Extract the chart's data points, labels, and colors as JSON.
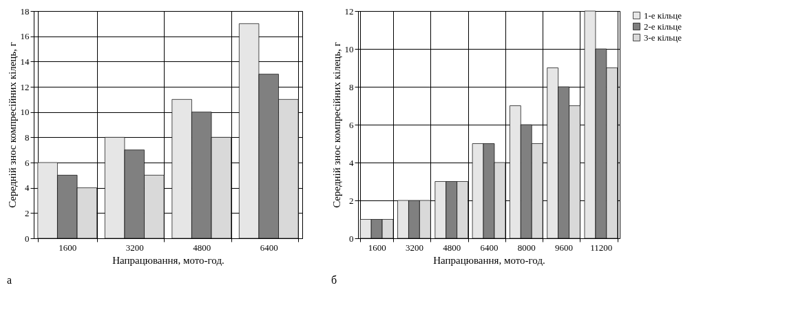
{
  "chart_data": [
    {
      "type": "bar",
      "categories": [
        "1600",
        "3200",
        "4800",
        "6400"
      ],
      "series": [
        {
          "color": "#e6e6e6",
          "values": [
            6,
            8,
            11,
            17
          ]
        },
        {
          "color": "#808080",
          "values": [
            5,
            7,
            10,
            13
          ]
        },
        {
          "color": "#d9d9d9",
          "values": [
            4,
            5,
            8,
            11
          ]
        }
      ],
      "ylim": [
        0,
        18
      ],
      "yticks": [
        0,
        2,
        4,
        6,
        8,
        10,
        12,
        14,
        16,
        18
      ],
      "xlabel": "Напрацювання, мото-год.",
      "ylabel": "Середній знос компресійних кілець, г",
      "grid": true,
      "legend": false,
      "annotations": [
        "а"
      ]
    },
    {
      "type": "bar",
      "categories": [
        "1600",
        "3200",
        "4800",
        "6400",
        "8000",
        "9600",
        "11200"
      ],
      "series": [
        {
          "name": "1-е кільце",
          "color": "#e6e6e6",
          "values": [
            1,
            2,
            3,
            5,
            7,
            9,
            12
          ]
        },
        {
          "name": "2-е кільце",
          "color": "#808080",
          "values": [
            1,
            2,
            3,
            5,
            6,
            8,
            10
          ]
        },
        {
          "name": "3-е кільце",
          "color": "#d9d9d9",
          "values": [
            1,
            2,
            3,
            4,
            5,
            7,
            9
          ]
        }
      ],
      "ylim": [
        0,
        12
      ],
      "yticks": [
        0,
        2,
        4,
        6,
        8,
        10,
        12
      ],
      "xlabel": "Напрацювання, мото-год.",
      "ylabel": "Середній знос компресійних кілець, г",
      "grid": true,
      "legend": "right",
      "annotations": [
        "б"
      ]
    }
  ]
}
